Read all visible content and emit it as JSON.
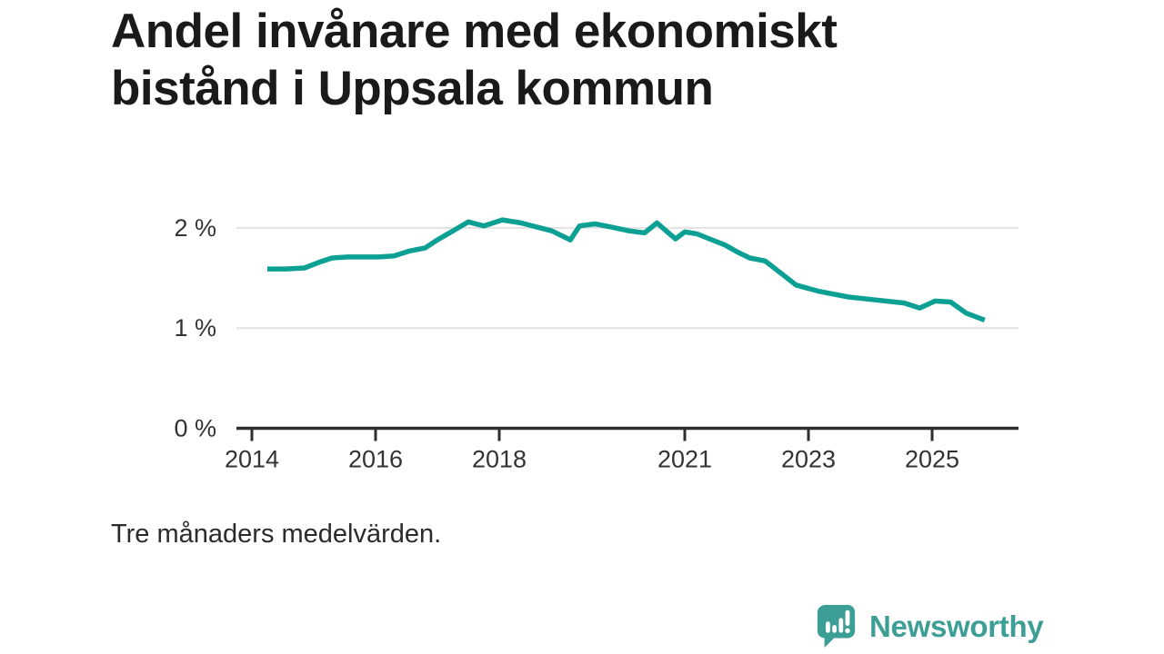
{
  "title": "Andel invånare med ekonomiskt bistånd i Uppsala kommun",
  "footnote": "Tre månaders medelvärden.",
  "brand": {
    "name": "Newsworthy",
    "color": "#3d9e96",
    "icon": "speech-bubble-bar-chart-icon"
  },
  "colors": {
    "line": "#0ba093",
    "axis": "#2e2e2e",
    "gridline": "#e2e2e2",
    "tick_text": "#333333"
  },
  "chart_data": {
    "type": "line",
    "title": "Andel invånare med ekonomiskt bistånd i Uppsala kommun",
    "subtitle": "Tre månaders medelvärden.",
    "unit": "%",
    "grid": "horizontal",
    "legend_position": "none",
    "xlim": [
      2013.75,
      2026.4
    ],
    "ylim": [
      0,
      2.2
    ],
    "x_ticks": [
      {
        "label": "2014",
        "value": 2014
      },
      {
        "label": "2016",
        "value": 2016
      },
      {
        "label": "2018",
        "value": 2018
      },
      {
        "label": "2021",
        "value": 2021
      },
      {
        "label": "2023",
        "value": 2023
      },
      {
        "label": "2025",
        "value": 2025
      }
    ],
    "y_ticks": [
      {
        "label": "0 %",
        "value": 0
      },
      {
        "label": "1 %",
        "value": 1
      },
      {
        "label": "2 %",
        "value": 2
      }
    ],
    "series": [
      {
        "name": "Andel invånare med ekonomiskt bistånd",
        "color": "#0ba093",
        "points": [
          [
            2014.25,
            1.59
          ],
          [
            2014.55,
            1.59
          ],
          [
            2014.85,
            1.6
          ],
          [
            2015.1,
            1.66
          ],
          [
            2015.3,
            1.7
          ],
          [
            2015.55,
            1.71
          ],
          [
            2015.8,
            1.71
          ],
          [
            2016.05,
            1.71
          ],
          [
            2016.3,
            1.72
          ],
          [
            2016.55,
            1.77
          ],
          [
            2016.8,
            1.8
          ],
          [
            2017.0,
            1.88
          ],
          [
            2017.25,
            1.97
          ],
          [
            2017.5,
            2.06
          ],
          [
            2017.75,
            2.02
          ],
          [
            2018.05,
            2.08
          ],
          [
            2018.35,
            2.05
          ],
          [
            2018.6,
            2.01
          ],
          [
            2018.85,
            1.97
          ],
          [
            2019.15,
            1.88
          ],
          [
            2019.3,
            2.02
          ],
          [
            2019.55,
            2.04
          ],
          [
            2019.8,
            2.01
          ],
          [
            2020.1,
            1.97
          ],
          [
            2020.35,
            1.95
          ],
          [
            2020.55,
            2.05
          ],
          [
            2020.85,
            1.89
          ],
          [
            2021.0,
            1.96
          ],
          [
            2021.2,
            1.94
          ],
          [
            2021.4,
            1.89
          ],
          [
            2021.65,
            1.83
          ],
          [
            2021.85,
            1.76
          ],
          [
            2022.05,
            1.7
          ],
          [
            2022.3,
            1.67
          ],
          [
            2022.55,
            1.55
          ],
          [
            2022.8,
            1.43
          ],
          [
            2023.15,
            1.37
          ],
          [
            2023.65,
            1.31
          ],
          [
            2024.1,
            1.28
          ],
          [
            2024.55,
            1.25
          ],
          [
            2024.8,
            1.2
          ],
          [
            2025.05,
            1.27
          ],
          [
            2025.3,
            1.26
          ],
          [
            2025.55,
            1.15
          ],
          [
            2025.85,
            1.08
          ]
        ]
      }
    ]
  }
}
